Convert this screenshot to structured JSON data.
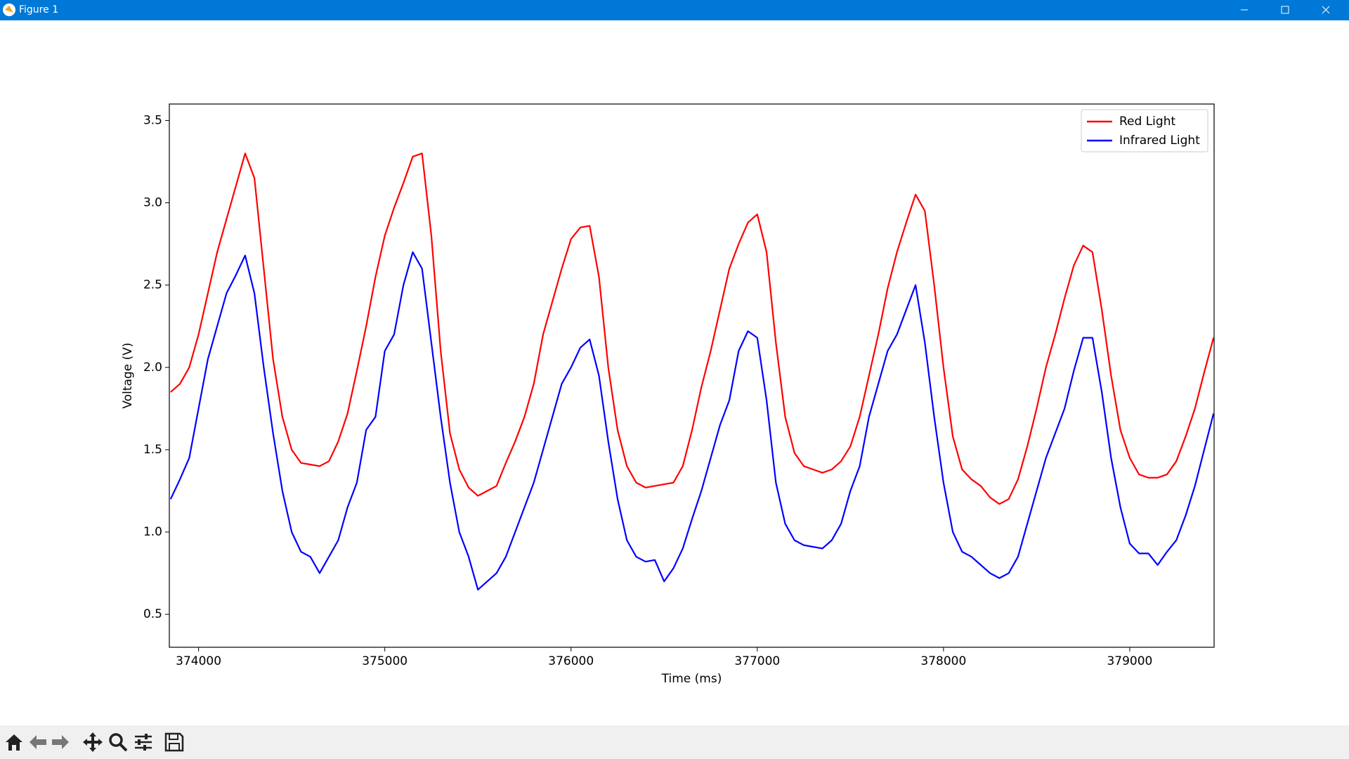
{
  "window": {
    "title": "Figure 1"
  },
  "chart_data": {
    "type": "line",
    "xlabel": "Time (ms)",
    "ylabel": "Voltage (V)",
    "x": [
      373850,
      373900,
      373950,
      374000,
      374050,
      374100,
      374150,
      374200,
      374250,
      374300,
      374350,
      374400,
      374450,
      374500,
      374550,
      374600,
      374650,
      374700,
      374750,
      374800,
      374850,
      374900,
      374950,
      375000,
      375050,
      375100,
      375150,
      375200,
      375250,
      375300,
      375350,
      375400,
      375450,
      375500,
      375550,
      375600,
      375650,
      375700,
      375750,
      375800,
      375850,
      375900,
      375950,
      376000,
      376050,
      376100,
      376150,
      376200,
      376250,
      376300,
      376350,
      376400,
      376450,
      376500,
      376550,
      376600,
      376650,
      376700,
      376750,
      376800,
      376850,
      376900,
      376950,
      377000,
      377050,
      377100,
      377150,
      377200,
      377250,
      377300,
      377350,
      377400,
      377450,
      377500,
      377550,
      377600,
      377650,
      377700,
      377750,
      377800,
      377850,
      377900,
      377950,
      378000,
      378050,
      378100,
      378150,
      378200,
      378250,
      378300,
      378350,
      378400,
      378450,
      378500,
      378550,
      378600,
      378650,
      378700,
      378750,
      378800,
      378850,
      378900,
      378950,
      379000,
      379050,
      379100,
      379150,
      379200,
      379250,
      379300,
      379350,
      379400,
      379450
    ],
    "series": [
      {
        "name": "Red Light",
        "color": "#ff0000",
        "values": [
          1.85,
          1.9,
          2.0,
          2.2,
          2.45,
          2.7,
          2.9,
          3.1,
          3.3,
          3.15,
          2.6,
          2.05,
          1.7,
          1.5,
          1.42,
          1.41,
          1.4,
          1.43,
          1.55,
          1.72,
          1.98,
          2.25,
          2.55,
          2.8,
          2.97,
          3.12,
          3.28,
          3.3,
          2.8,
          2.1,
          1.6,
          1.38,
          1.27,
          1.22,
          1.25,
          1.28,
          1.42,
          1.55,
          1.7,
          1.9,
          2.2,
          2.4,
          2.6,
          2.78,
          2.85,
          2.86,
          2.55,
          2.0,
          1.62,
          1.4,
          1.3,
          1.27,
          1.28,
          1.29,
          1.3,
          1.4,
          1.62,
          1.88,
          2.1,
          2.35,
          2.6,
          2.75,
          2.88,
          2.93,
          2.7,
          2.15,
          1.7,
          1.48,
          1.4,
          1.38,
          1.36,
          1.38,
          1.43,
          1.52,
          1.7,
          1.95,
          2.2,
          2.48,
          2.7,
          2.88,
          3.05,
          2.95,
          2.5,
          2.0,
          1.58,
          1.38,
          1.32,
          1.28,
          1.21,
          1.17,
          1.2,
          1.32,
          1.52,
          1.75,
          2.0,
          2.2,
          2.42,
          2.62,
          2.74,
          2.7,
          2.35,
          1.95,
          1.62,
          1.45,
          1.35,
          1.33,
          1.33,
          1.35,
          1.43,
          1.58,
          1.75,
          1.97,
          2.18
        ]
      },
      {
        "name": "Infrared Light",
        "color": "#0000ff",
        "values": [
          1.2,
          1.32,
          1.45,
          1.75,
          2.05,
          2.25,
          2.45,
          2.56,
          2.68,
          2.45,
          2.0,
          1.6,
          1.25,
          1.0,
          0.88,
          0.85,
          0.75,
          0.85,
          0.95,
          1.15,
          1.3,
          1.62,
          1.7,
          2.1,
          2.2,
          2.5,
          2.7,
          2.6,
          2.15,
          1.7,
          1.3,
          1.0,
          0.85,
          0.65,
          0.7,
          0.75,
          0.85,
          1.0,
          1.15,
          1.3,
          1.5,
          1.7,
          1.9,
          2.0,
          2.12,
          2.17,
          1.95,
          1.55,
          1.2,
          0.95,
          0.85,
          0.82,
          0.83,
          0.7,
          0.78,
          0.9,
          1.08,
          1.25,
          1.45,
          1.65,
          1.8,
          2.1,
          2.22,
          2.18,
          1.8,
          1.3,
          1.05,
          0.95,
          0.92,
          0.91,
          0.9,
          0.95,
          1.05,
          1.25,
          1.4,
          1.7,
          1.9,
          2.1,
          2.2,
          2.35,
          2.5,
          2.15,
          1.7,
          1.3,
          1.0,
          0.88,
          0.85,
          0.8,
          0.75,
          0.72,
          0.75,
          0.85,
          1.05,
          1.25,
          1.45,
          1.6,
          1.75,
          1.98,
          2.18,
          2.18,
          1.85,
          1.45,
          1.15,
          0.93,
          0.87,
          0.87,
          0.8,
          0.88,
          0.95,
          1.1,
          1.28,
          1.5,
          1.72
        ]
      }
    ],
    "xlim": [
      373843,
      379453
    ],
    "ylim": [
      0.3,
      3.6
    ],
    "xticks": [
      374000,
      375000,
      376000,
      377000,
      378000,
      379000
    ],
    "yticks": [
      0.5,
      {
        "value": 1,
        "label": "1.0"
      },
      1.5,
      {
        "value": 2,
        "label": "2.0"
      },
      2.5,
      {
        "value": 3,
        "label": "3.0"
      },
      3.5
    ],
    "legend": "upper right"
  }
}
